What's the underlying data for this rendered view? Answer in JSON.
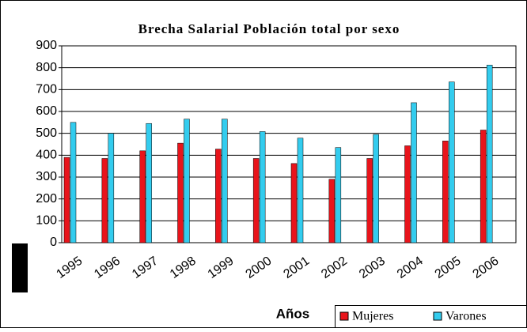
{
  "chart_data": {
    "type": "bar",
    "title": "Brecha Salarial Población total por sexo",
    "xlabel": "Años",
    "categories": [
      "1995",
      "1996",
      "1997",
      "1998",
      "1999",
      "2000",
      "2001",
      "2002",
      "2003",
      "2004",
      "2005",
      "2006"
    ],
    "series": [
      {
        "name": "Mujeres",
        "color": "#e8141b",
        "values": [
          390,
          385,
          420,
          455,
          428,
          385,
          362,
          290,
          385,
          443,
          465,
          515
        ]
      },
      {
        "name": "Varones",
        "color": "#33ccee",
        "values": [
          550,
          500,
          545,
          565,
          565,
          508,
          478,
          435,
          495,
          640,
          735,
          812
        ]
      }
    ],
    "ylim": [
      0,
      900
    ],
    "yticks": [
      0,
      100,
      200,
      300,
      400,
      500,
      600,
      700,
      800,
      900
    ],
    "grid": true
  }
}
